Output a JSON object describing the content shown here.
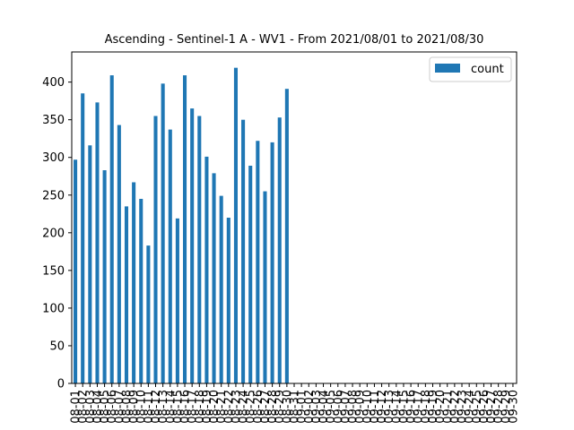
{
  "chart_data": {
    "type": "bar",
    "title": "Ascending - Sentinel-1 A - WV1 - From 2021/08/01 to 2021/08/30",
    "xlabel": "",
    "ylabel": "",
    "ylim": [
      0,
      440
    ],
    "yticks": [
      0,
      50,
      100,
      150,
      200,
      250,
      300,
      350,
      400
    ],
    "grid": false,
    "legend_position": "top-right",
    "bar_color": "#1f77b4",
    "categories": [
      "08-01",
      "08-02",
      "08-03",
      "08-04",
      "08-05",
      "08-06",
      "08-07",
      "08-08",
      "08-09",
      "08-10",
      "08-11",
      "08-12",
      "08-13",
      "08-14",
      "08-15",
      "08-16",
      "08-17",
      "08-18",
      "08-19",
      "08-20",
      "08-21",
      "08-22",
      "08-23",
      "08-24",
      "08-25",
      "08-26",
      "08-27",
      "08-28",
      "08-29",
      "08-30",
      "08-31",
      "09-01",
      "09-02",
      "09-03",
      "09-04",
      "09-05",
      "09-06",
      "09-07",
      "09-08",
      "09-09",
      "09-10",
      "09-11",
      "09-12",
      "09-13",
      "09-14",
      "09-15",
      "09-16",
      "09-17",
      "09-18",
      "09-19",
      "09-20",
      "09-21",
      "09-22",
      "09-23",
      "09-24",
      "09-25",
      "09-26",
      "09-27",
      "09-28",
      "09-29",
      "09-30"
    ],
    "series": [
      {
        "name": "count",
        "values": [
          297,
          385,
          316,
          373,
          283,
          409,
          343,
          235,
          267,
          245,
          183,
          355,
          398,
          337,
          219,
          409,
          365,
          355,
          301,
          279,
          249,
          220,
          419,
          350,
          289,
          322,
          255,
          320,
          353,
          391,
          0,
          0,
          0,
          0,
          0,
          0,
          0,
          0,
          0,
          0,
          0,
          0,
          0,
          0,
          0,
          0,
          0,
          0,
          0,
          0,
          0,
          0,
          0,
          0,
          0,
          0,
          0,
          0,
          0,
          0,
          0
        ]
      }
    ]
  }
}
